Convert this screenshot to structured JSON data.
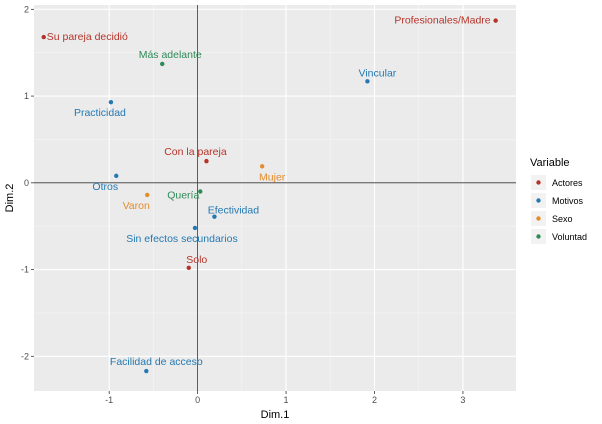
{
  "chart_data": {
    "type": "scatter",
    "title": "",
    "xlabel": "Dim.1",
    "ylabel": "Dim.2",
    "xlim": [
      -1.85,
      3.6
    ],
    "ylim": [
      -2.4,
      2.05
    ],
    "x_ticks": [
      -1,
      0,
      1,
      2,
      3
    ],
    "y_ticks": [
      -2,
      -1,
      0,
      1,
      2
    ],
    "grid": true,
    "reference_lines": {
      "x": 0,
      "y": 0
    },
    "legend": {
      "title": "Variable",
      "position": "right",
      "entries": [
        {
          "name": "Actores",
          "color": "#b5342a"
        },
        {
          "name": "Motivos",
          "color": "#2479b3"
        },
        {
          "name": "Sexo",
          "color": "#e58c2a"
        },
        {
          "name": "Voluntad",
          "color": "#2e8a57"
        }
      ]
    },
    "series": [
      {
        "name": "Actores",
        "color": "#b5342a",
        "points": [
          {
            "label": "Su pareja decidió",
            "x": -1.74,
            "y": 1.68
          },
          {
            "label": "Profesionales/Madre",
            "x": 3.37,
            "y": 1.87
          },
          {
            "label": "Con la pareja",
            "x": 0.1,
            "y": 0.25
          },
          {
            "label": "Solo",
            "x": -0.1,
            "y": -0.98
          }
        ]
      },
      {
        "name": "Motivos",
        "color": "#2479b3",
        "points": [
          {
            "label": "Vincular",
            "x": 1.92,
            "y": 1.17
          },
          {
            "label": "Practicidad",
            "x": -0.98,
            "y": 0.93
          },
          {
            "label": "Otros",
            "x": -0.92,
            "y": 0.08
          },
          {
            "label": "Efectividad",
            "x": 0.19,
            "y": -0.39
          },
          {
            "label": "Sin efectos secundarios",
            "x": -0.03,
            "y": -0.52
          },
          {
            "label": "Facilidad de acceso",
            "x": -0.58,
            "y": -2.17
          }
        ]
      },
      {
        "name": "Sexo",
        "color": "#e58c2a",
        "points": [
          {
            "label": "Mujer",
            "x": 0.73,
            "y": 0.19
          },
          {
            "label": "Varon",
            "x": -0.57,
            "y": -0.14
          }
        ]
      },
      {
        "name": "Voluntad",
        "color": "#2e8a57",
        "points": [
          {
            "label": "Más adelante",
            "x": -0.4,
            "y": 1.37
          },
          {
            "label": "Quería",
            "x": 0.03,
            "y": -0.1
          }
        ]
      }
    ]
  }
}
